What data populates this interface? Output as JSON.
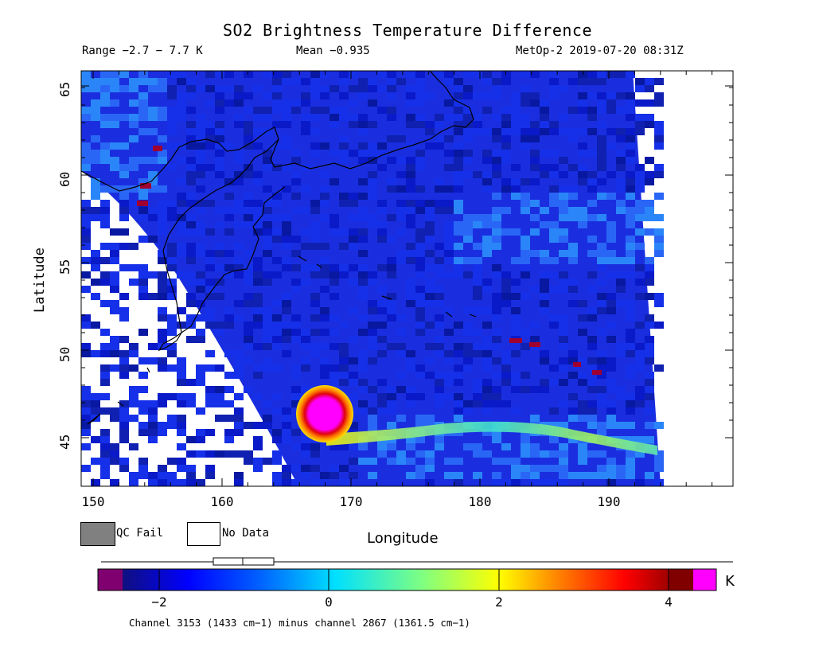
{
  "title": "SO2 Brightness Temperature Difference",
  "range_text": "Range −2.7 − 7.7 K",
  "mean_text": "Mean −0.935",
  "source_text": "MetOp-2 2019-07-20 08:31Z",
  "axes": {
    "xlabel": "Longitude",
    "ylabel": "Latitude",
    "xticks": [
      "150",
      "160",
      "170",
      "180",
      "190"
    ],
    "yticks": [
      "45",
      "50",
      "55",
      "60",
      "65"
    ]
  },
  "legend": {
    "qc_fail": "QC Fail",
    "no_data": "No Data"
  },
  "colorbar": {
    "ticks": [
      "−2",
      "0",
      "2",
      "4"
    ],
    "unit": "K",
    "caption": "Channel 3153 (1433 cm−1) minus channel 2867 (1361.5 cm−1)"
  },
  "colors": {
    "qc_fail": "#808080",
    "hotspot": "#ff00ff",
    "background_low": "#1020d0"
  }
}
